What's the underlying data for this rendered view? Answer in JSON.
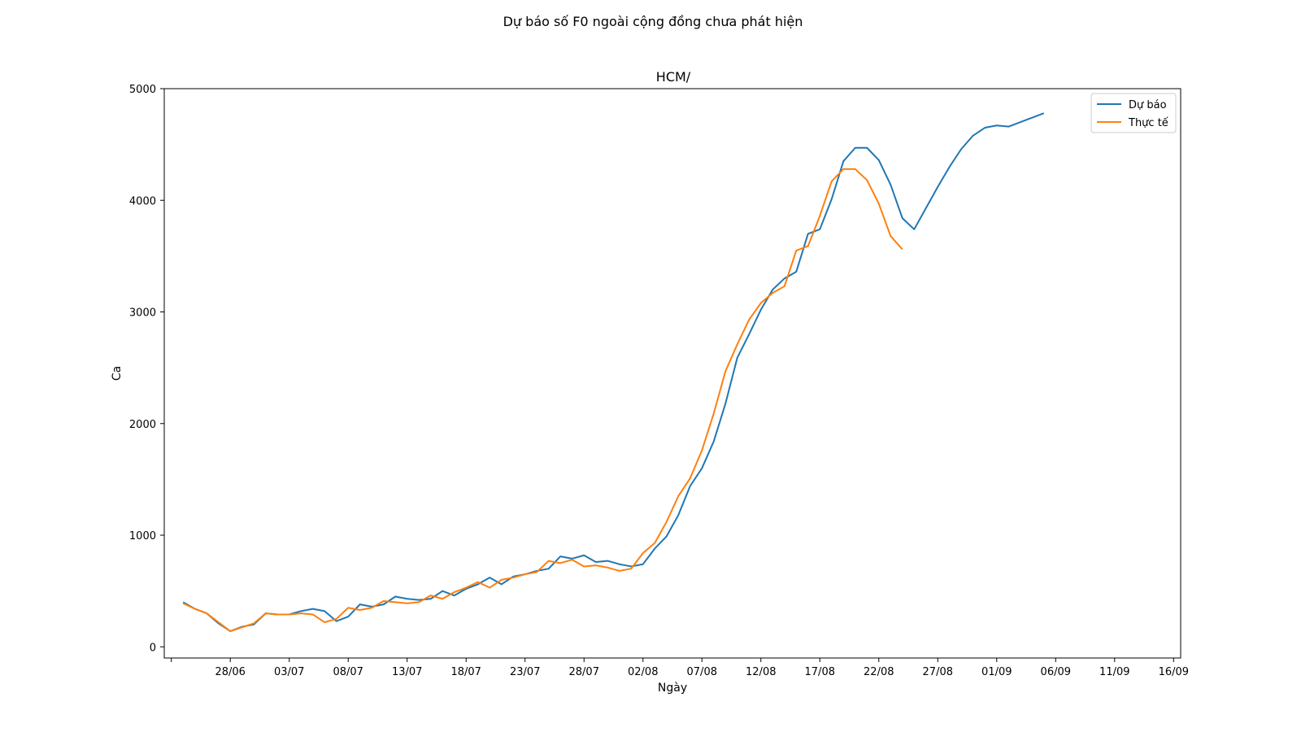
{
  "suptitle": "Dự báo số F0 ngoài cộng đồng chưa phát hiện",
  "chart_data": {
    "type": "line",
    "title": "HCM/",
    "xlabel": "Ngày",
    "ylabel": "Ca",
    "x_ticks": [
      "",
      "28/06",
      "03/07",
      "08/07",
      "13/07",
      "18/07",
      "23/07",
      "28/07",
      "02/08",
      "07/08",
      "12/08",
      "17/08",
      "22/08",
      "27/08",
      "01/09",
      "06/09",
      "11/09",
      "16/09"
    ],
    "y_ticks": [
      "0",
      "1000",
      "2000",
      "3000",
      "4000",
      "5000"
    ],
    "xlim": [
      "2021-06-23",
      "2021-09-16"
    ],
    "ylim": [
      -100,
      5000
    ],
    "legend_position": "top-right",
    "series": [
      {
        "name": "Dự báo",
        "color": "#1f77b4",
        "start_date": "2021-06-24",
        "values": [
          400,
          340,
          300,
          210,
          140,
          180,
          200,
          300,
          290,
          290,
          320,
          340,
          320,
          230,
          270,
          380,
          360,
          380,
          450,
          430,
          420,
          430,
          500,
          460,
          520,
          560,
          620,
          560,
          630,
          650,
          680,
          700,
          810,
          790,
          820,
          760,
          770,
          740,
          720,
          740,
          880,
          990,
          1180,
          1440,
          1600,
          1840,
          2180,
          2590,
          2800,
          3020,
          3200,
          3300,
          3360,
          3700,
          3740,
          4010,
          4350,
          4470,
          4470,
          4360,
          4140,
          3840,
          3740,
          3930,
          4120,
          4300,
          4460,
          4580,
          4650,
          4670,
          4660,
          4700,
          4740,
          4780
        ]
      },
      {
        "name": "Thực tế",
        "color": "#ff7f0e",
        "start_date": "2021-06-24",
        "values": [
          390,
          340,
          300,
          220,
          140,
          175,
          210,
          300,
          290,
          290,
          300,
          290,
          220,
          250,
          350,
          330,
          350,
          410,
          400,
          390,
          400,
          460,
          430,
          490,
          530,
          580,
          530,
          600,
          620,
          650,
          670,
          770,
          750,
          780,
          720,
          730,
          710,
          680,
          700,
          840,
          930,
          1120,
          1350,
          1510,
          1760,
          2090,
          2470,
          2710,
          2930,
          3080,
          3170,
          3230,
          3550,
          3590,
          3860,
          4170,
          4280,
          4280,
          4180,
          3970,
          3680,
          3560
        ]
      }
    ]
  }
}
